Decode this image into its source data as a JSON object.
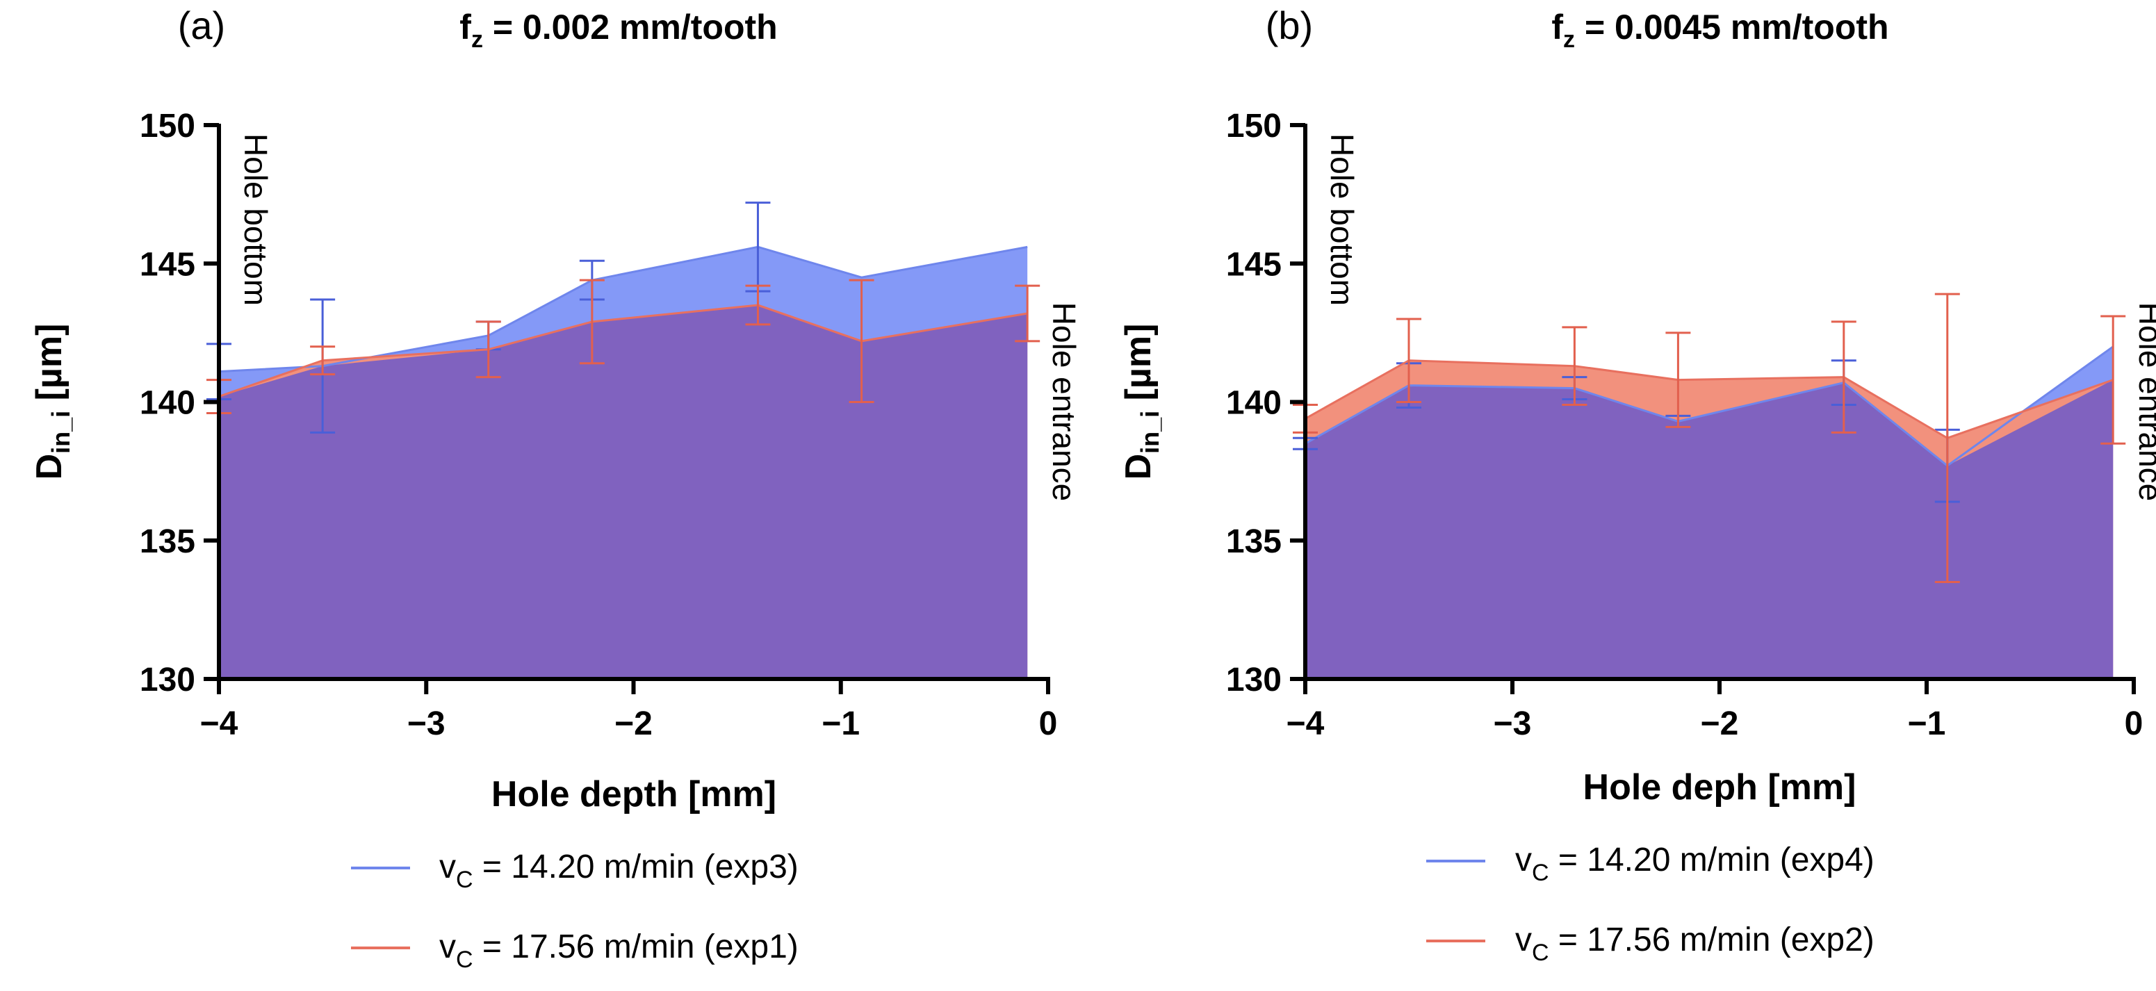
{
  "chart_data": [
    {
      "type": "area",
      "panel_label": "(a)",
      "title": {
        "symbol": "f",
        "subscript": "z",
        "rest": " = 0.002 mm/tooth"
      },
      "xlabel": "Hole depth [mm]",
      "ylabel": {
        "symbol": "D",
        "subscript": "in_i",
        "unit": " [µm]"
      },
      "xlim": [
        -4,
        0
      ],
      "ylim": [
        130,
        150
      ],
      "x_ticks": [
        -4,
        -3,
        -2,
        -1,
        0
      ],
      "x_tick_labels": [
        "−4",
        "−3",
        "−2",
        "−1",
        "0"
      ],
      "y_ticks": [
        130,
        135,
        140,
        145,
        150
      ],
      "y_tick_labels": [
        "130",
        "135",
        "140",
        "145",
        "150"
      ],
      "annotations": {
        "left": "Hole bottom",
        "right": "Hole entrance"
      },
      "series": [
        {
          "name": "v_C = 14.20 m/min (exp3)",
          "legend": {
            "prefix": "v",
            "subscript": "C",
            "rest": " = 14.20 m/min (exp3)"
          },
          "line_color": "#6f86ec",
          "fill_color": "#8499f7",
          "error_color": "#4a5fd8",
          "x": [
            -4.0,
            -3.5,
            -2.7,
            -2.2,
            -1.4,
            -0.9,
            -0.1
          ],
          "y": [
            141.1,
            141.3,
            142.4,
            144.4,
            145.6,
            144.5,
            145.6
          ],
          "err": [
            1.0,
            2.4,
            0.5,
            0.7,
            1.6,
            0.0,
            0.0
          ]
        },
        {
          "name": "v_C = 17.56 m/min (exp1)",
          "legend": {
            "prefix": "v",
            "subscript": "C",
            "rest": " = 17.56 m/min (exp1)"
          },
          "line_color": "#e8705f",
          "fill_color": "#f2917d",
          "error_color": "#e2604e",
          "x": [
            -4.0,
            -3.5,
            -2.7,
            -2.2,
            -1.4,
            -0.9,
            -0.1
          ],
          "y": [
            140.2,
            141.5,
            141.9,
            142.9,
            143.5,
            142.2,
            143.2
          ],
          "err": [
            0.6,
            0.5,
            1.0,
            1.5,
            0.7,
            2.2,
            1.0
          ]
        }
      ],
      "overlap_color": "#8062bf"
    },
    {
      "type": "area",
      "panel_label": "(b)",
      "title": {
        "symbol": "f",
        "subscript": "z",
        "rest": " = 0.0045 mm/tooth"
      },
      "xlabel": "Hole deph [mm]",
      "ylabel": {
        "symbol": "D",
        "subscript": "in_i",
        "unit": " [µm]"
      },
      "xlim": [
        -4,
        0
      ],
      "ylim": [
        130,
        150
      ],
      "x_ticks": [
        -4,
        -3,
        -2,
        -1,
        0
      ],
      "x_tick_labels": [
        "−4",
        "−3",
        "−2",
        "−1",
        "0"
      ],
      "y_ticks": [
        130,
        135,
        140,
        145,
        150
      ],
      "y_tick_labels": [
        "130",
        "135",
        "140",
        "145",
        "150"
      ],
      "annotations": {
        "left": "Hole bottom",
        "right": "Hole entrance"
      },
      "series": [
        {
          "name": "v_C = 14.20 m/min (exp4)",
          "legend": {
            "prefix": "v",
            "subscript": "C",
            "rest": " = 14.20 m/min (exp4)"
          },
          "line_color": "#6f86ec",
          "fill_color": "#8499f7",
          "error_color": "#4a5fd8",
          "x": [
            -4.0,
            -3.5,
            -2.7,
            -2.2,
            -1.4,
            -0.9,
            -0.1
          ],
          "y": [
            138.5,
            140.6,
            140.5,
            139.3,
            140.7,
            137.7,
            142.0
          ],
          "err": [
            0.2,
            0.8,
            0.4,
            0.2,
            0.8,
            1.3,
            0.0
          ]
        },
        {
          "name": "v_C = 17.56 m/min (exp2)",
          "legend": {
            "prefix": "v",
            "subscript": "C",
            "rest": " = 17.56 m/min (exp2)"
          },
          "line_color": "#e8705f",
          "fill_color": "#f2917d",
          "error_color": "#e2604e",
          "x": [
            -4.0,
            -3.5,
            -2.7,
            -2.2,
            -1.4,
            -0.9,
            -0.1
          ],
          "y": [
            139.4,
            141.5,
            141.3,
            140.8,
            140.9,
            138.7,
            140.8
          ],
          "err": [
            0.5,
            1.5,
            1.4,
            1.7,
            2.0,
            5.2,
            2.3
          ]
        }
      ],
      "overlap_color": "#8062bf"
    }
  ]
}
